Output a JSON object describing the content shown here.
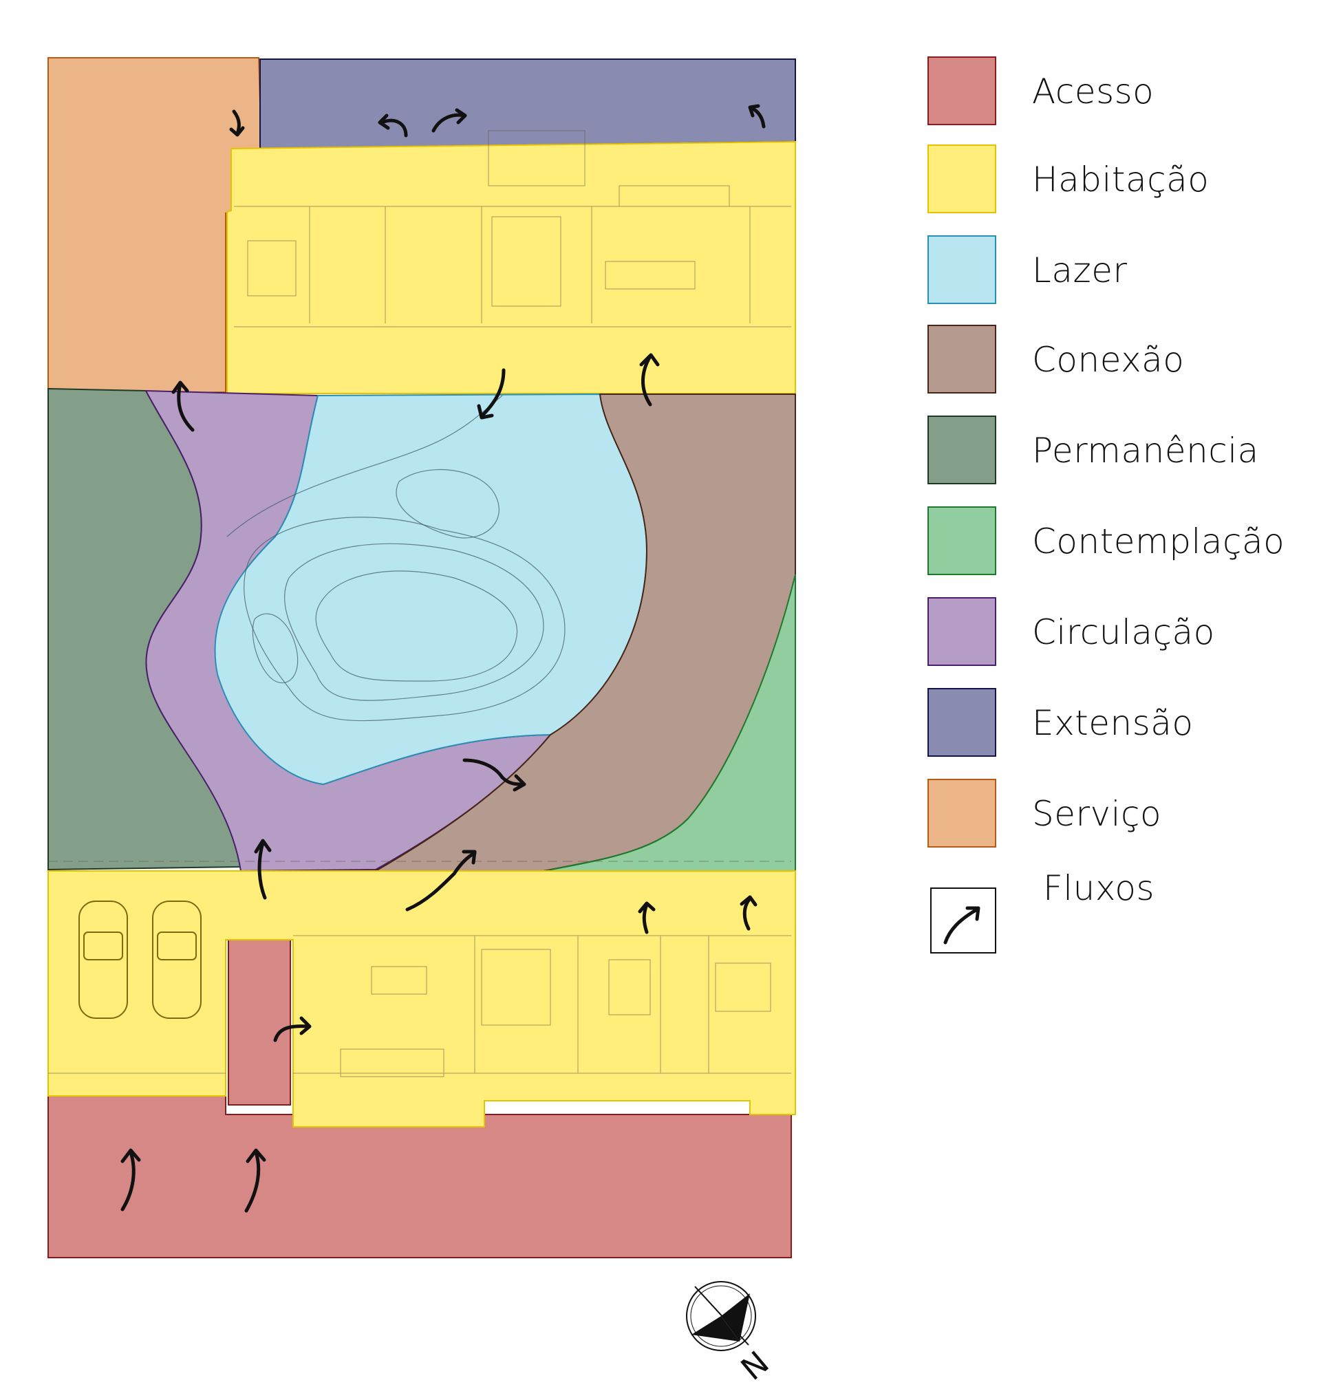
{
  "legend": {
    "items": [
      {
        "label": "Acesso",
        "color": "#d68887",
        "border": "#8b1a1a"
      },
      {
        "label": "Habitação",
        "color": "#ffee7a",
        "border": "#e6c200"
      },
      {
        "label": "Lazer",
        "color": "#b8e6f0",
        "border": "#2a8fb5"
      },
      {
        "label": "Conexão",
        "color": "#b59a8f",
        "border": "#4a2515"
      },
      {
        "label": "Permanência",
        "color": "#849f89",
        "border": "#1f3b25"
      },
      {
        "label": "Contemplação",
        "color": "#92cda0",
        "border": "#1d7a2c"
      },
      {
        "label": "Circulação",
        "color": "#b69dc6",
        "border": "#4a1f6a"
      },
      {
        "label": "Extensão",
        "color": "#8a8bb0",
        "border": "#14144a"
      },
      {
        "label": "Serviço",
        "color": "#ebb588",
        "border": "#b65a14"
      }
    ],
    "flow_label": "Fluxos"
  },
  "compass": {
    "letter": "N"
  }
}
